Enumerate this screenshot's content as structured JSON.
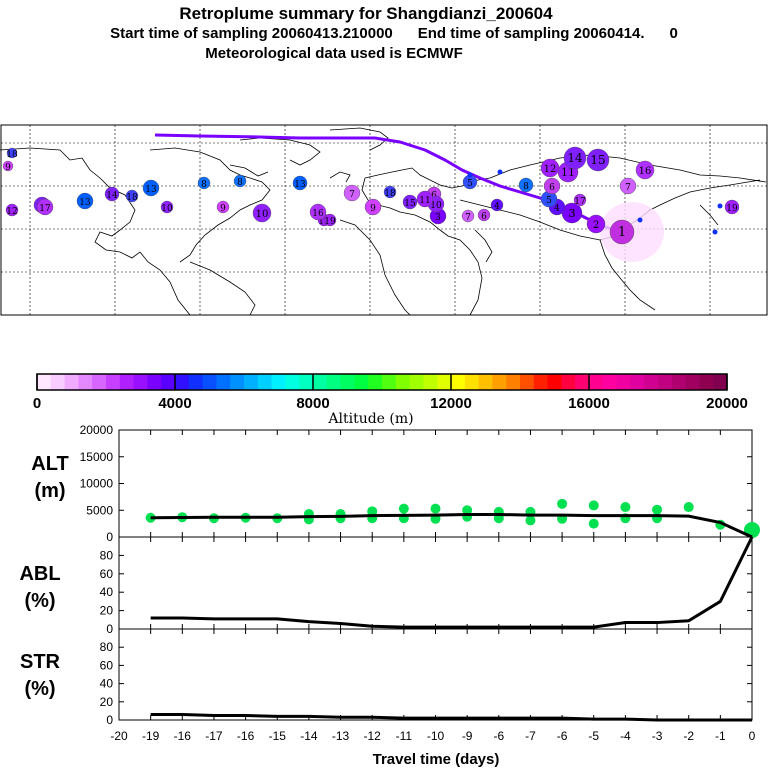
{
  "header": {
    "title": "Retroplume summary for Shangdianzi_200604",
    "subtitle": "Start time of sampling 20060413.210000      End time of sampling 20060414.      0",
    "met_line": "Meteorological data used is ECMWF"
  },
  "colorbar": {
    "label": "Altitude (m)",
    "ticks": [
      "0",
      "4000",
      "8000",
      "12000",
      "16000",
      "20000"
    ],
    "colors": [
      "#ffe6ff",
      "#f8ccff",
      "#f0aaff",
      "#e488ff",
      "#d666ff",
      "#c840ff",
      "#b020ff",
      "#9810ff",
      "#7a00ff",
      "#5a00ff",
      "#3010ff",
      "#1030ff",
      "#0850ff",
      "#0070ff",
      "#0090ff",
      "#00b0ff",
      "#00d0ff",
      "#00f0ff",
      "#00ffe0",
      "#00ffc0",
      "#00ffa0",
      "#00ff80",
      "#00ff60",
      "#00ff40",
      "#20ff20",
      "#50ff10",
      "#80ff00",
      "#a0ff00",
      "#c0ff00",
      "#e0ff00",
      "#ffff00",
      "#ffe000",
      "#ffc000",
      "#ffa000",
      "#ff8000",
      "#ff5000",
      "#ff2000",
      "#ff0000",
      "#ff0040",
      "#ff0070",
      "#ff0090",
      "#ff00a0",
      "#f000a0",
      "#e000a0",
      "#d00090",
      "#c00080",
      "#b00070",
      "#a00060",
      "#900050",
      "#800050"
    ]
  },
  "map": {
    "trajectory_color": "#7a00ff",
    "markers": [
      {
        "n": "1",
        "c": "#c030e0"
      },
      {
        "n": "2",
        "c": "#9a10ff"
      },
      {
        "n": "3",
        "c": "#7a00ff"
      },
      {
        "n": "4",
        "c": "#6010ff"
      },
      {
        "n": "5",
        "c": "#3050ff"
      },
      {
        "n": "6",
        "c": "#c040f0"
      },
      {
        "n": "7",
        "c": "#d060ff"
      },
      {
        "n": "8",
        "c": "#1070ff"
      },
      {
        "n": "9",
        "c": "#d040ff"
      },
      {
        "n": "10",
        "c": "#9020ff"
      },
      {
        "n": "11",
        "c": "#a020ff"
      },
      {
        "n": "12",
        "c": "#a020ff"
      },
      {
        "n": "13",
        "c": "#0060ff"
      },
      {
        "n": "14",
        "c": "#8020ff"
      },
      {
        "n": "15",
        "c": "#8020ff"
      },
      {
        "n": "16",
        "c": "#b030ff"
      },
      {
        "n": "17",
        "c": "#b030ff"
      },
      {
        "n": "18",
        "c": "#4040ff"
      },
      {
        "n": "19",
        "c": "#a020ff"
      }
    ]
  },
  "chart_data": [
    {
      "type": "line",
      "title": "ALT (m)",
      "panel_label_1": "ALT",
      "panel_label_2": "(m)",
      "ylim": [
        0,
        20000
      ],
      "yticks": [
        "0",
        "5000",
        "10000",
        "15000",
        "20000"
      ],
      "x": [
        -19,
        -18,
        -17,
        -16,
        -15,
        -14,
        -13,
        -12,
        -11,
        -10,
        -9,
        -8,
        -7,
        -6,
        -5,
        -4,
        -3,
        -2,
        -1,
        0
      ],
      "series": [
        {
          "name": "mean altitude",
          "values": [
            3600,
            3650,
            3700,
            3700,
            3700,
            3800,
            3850,
            4000,
            4050,
            4100,
            4200,
            4200,
            4100,
            4100,
            4000,
            4000,
            4000,
            3900,
            2700,
            0
          ]
        }
      ],
      "scatter": {
        "name": "plume altitude spread",
        "color": "#00e050",
        "points": [
          {
            "x": -19,
            "y": 3600
          },
          {
            "x": -18,
            "y": 3700
          },
          {
            "x": -17,
            "y": 3500
          },
          {
            "x": -16,
            "y": 3600
          },
          {
            "x": -15,
            "y": 3500
          },
          {
            "x": -14,
            "y": 3300
          },
          {
            "x": -14,
            "y": 4300
          },
          {
            "x": -13,
            "y": 3500
          },
          {
            "x": -13,
            "y": 4300
          },
          {
            "x": -12,
            "y": 3500
          },
          {
            "x": -12,
            "y": 4800
          },
          {
            "x": -11,
            "y": 3500
          },
          {
            "x": -11,
            "y": 5300
          },
          {
            "x": -10,
            "y": 3400
          },
          {
            "x": -10,
            "y": 5300
          },
          {
            "x": -9,
            "y": 3800
          },
          {
            "x": -9,
            "y": 5000
          },
          {
            "x": -8,
            "y": 3500
          },
          {
            "x": -8,
            "y": 4700
          },
          {
            "x": -7,
            "y": 3100
          },
          {
            "x": -7,
            "y": 4700
          },
          {
            "x": -6,
            "y": 3400
          },
          {
            "x": -6,
            "y": 6200
          },
          {
            "x": -5,
            "y": 2500
          },
          {
            "x": -5,
            "y": 5900
          },
          {
            "x": -4,
            "y": 3500
          },
          {
            "x": -4,
            "y": 5600
          },
          {
            "x": -3,
            "y": 3500
          },
          {
            "x": -3,
            "y": 5100
          },
          {
            "x": -2,
            "y": 5600
          },
          {
            "x": -1,
            "y": 2300
          },
          {
            "x": 0,
            "y": 1300
          }
        ]
      }
    },
    {
      "type": "line",
      "title": "ABL (%)",
      "panel_label_1": "ABL",
      "panel_label_2": "(%)",
      "ylim": [
        0,
        100
      ],
      "yticks": [
        "0",
        "20",
        "40",
        "60",
        "80"
      ],
      "x": [
        -19,
        -18,
        -17,
        -16,
        -15,
        -14,
        -13,
        -12,
        -11,
        -10,
        -9,
        -8,
        -7,
        -6,
        -5,
        -4,
        -3,
        -2,
        -1,
        0
      ],
      "series": [
        {
          "name": "ABL fraction",
          "values": [
            12,
            12,
            11,
            11,
            11,
            8,
            6,
            3,
            2,
            2,
            2,
            2,
            2,
            2,
            2,
            7,
            7,
            9,
            30,
            100
          ]
        }
      ]
    },
    {
      "type": "line",
      "title": "STR (%)",
      "panel_label_1": "STR",
      "panel_label_2": "(%)",
      "ylim": [
        0,
        100
      ],
      "yticks": [
        "0",
        "20",
        "40",
        "60",
        "80"
      ],
      "x": [
        -19,
        -18,
        -17,
        -16,
        -15,
        -14,
        -13,
        -12,
        -11,
        -10,
        -9,
        -8,
        -7,
        -6,
        -5,
        -4,
        -3,
        -2,
        -1,
        0
      ],
      "series": [
        {
          "name": "stratospheric fraction",
          "values": [
            6,
            6,
            5,
            5,
            4,
            4,
            3,
            3,
            2,
            2,
            2,
            2,
            2,
            2,
            1,
            1,
            0,
            0,
            0,
            0
          ]
        }
      ],
      "xlabel": "Travel time (days)",
      "xticks": [
        "-20",
        "-19",
        "-16",
        "-17",
        "-16",
        "-15",
        "-14",
        "-13",
        "-12",
        "-11",
        "-10",
        "-9",
        "-6",
        "-7",
        "-6",
        "-5",
        "-4",
        "-3",
        "-2",
        "-1",
        "0"
      ]
    }
  ]
}
